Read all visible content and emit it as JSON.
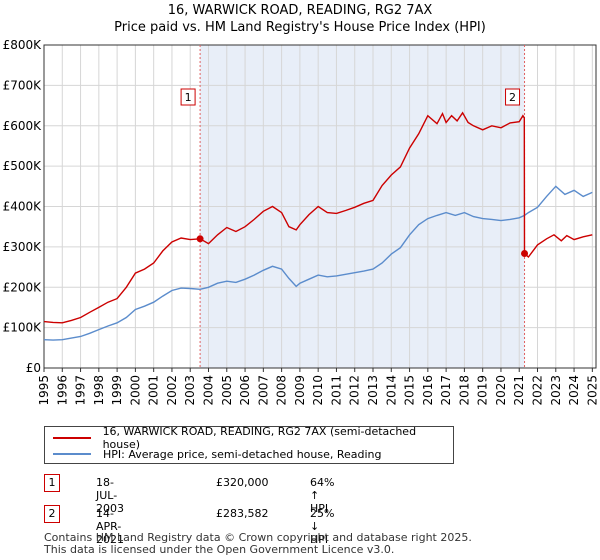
{
  "header": {
    "title": "16, WARWICK ROAD, READING, RG2 7AX",
    "subtitle": "Price paid vs. HM Land Registry's House Price Index (HPI)"
  },
  "legend": {
    "property_label": "16, WARWICK ROAD, READING, RG2 7AX (semi-detached house)",
    "hpi_label": "HPI: Average price, semi-detached house, Reading"
  },
  "transactions": [
    {
      "marker": "1",
      "date": "18-JUL-2003",
      "price": "£320,000",
      "hpi_change": "64% ↑ HPI"
    },
    {
      "marker": "2",
      "date": "14-APR-2021",
      "price": "£283,582",
      "hpi_change": "25% ↓ HPI"
    }
  ],
  "footer": {
    "line1": "Contains HM Land Registry data © Crown copyright and database right 2025.",
    "line2": "This data is licensed under the Open Government Licence v3.0."
  },
  "colors": {
    "property": "#cc0000",
    "hpi": "#5b8ccc",
    "shade": "#e8eef8",
    "grid": "#d6d6d6",
    "marker_line": "#e06060"
  },
  "chart_data": {
    "type": "line",
    "xlim": [
      1995,
      2025.2
    ],
    "ylim": [
      0,
      800000
    ],
    "y_ticks": [
      0,
      100000,
      200000,
      300000,
      400000,
      500000,
      600000,
      700000,
      800000
    ],
    "y_tick_labels": [
      "£0",
      "£100K",
      "£200K",
      "£300K",
      "£400K",
      "£500K",
      "£600K",
      "£700K",
      "£800K"
    ],
    "x_ticks": [
      1995,
      1996,
      1997,
      1998,
      1999,
      2000,
      2001,
      2002,
      2003,
      2004,
      2005,
      2006,
      2007,
      2008,
      2009,
      2010,
      2011,
      2012,
      2013,
      2014,
      2015,
      2016,
      2017,
      2018,
      2019,
      2020,
      2021,
      2022,
      2023,
      2024,
      2025
    ],
    "shaded_range": [
      2003.54,
      2021.29
    ],
    "sale_markers": [
      {
        "label": "1",
        "x": 2003.54,
        "y": 320000
      },
      {
        "label": "2",
        "x": 2021.29,
        "y": 283582
      }
    ],
    "series": [
      {
        "name": "16, WARWICK ROAD, READING, RG2 7AX (semi-detached house)",
        "x": [
          1995,
          1995.5,
          1996,
          1996.5,
          1997,
          1997.5,
          1998,
          1998.5,
          1999,
          1999.5,
          2000,
          2000.5,
          2001,
          2001.5,
          2002,
          2002.5,
          2003,
          2003.54,
          2004,
          2004.5,
          2005,
          2005.5,
          2006,
          2006.5,
          2007,
          2007.5,
          2008,
          2008.4,
          2008.8,
          2009,
          2009.5,
          2010,
          2010.5,
          2011,
          2011.5,
          2012,
          2012.5,
          2013,
          2013.5,
          2014,
          2014.5,
          2015,
          2015.5,
          2016,
          2016.5,
          2016.8,
          2017,
          2017.3,
          2017.6,
          2017.9,
          2018.2,
          2018.5,
          2019,
          2019.5,
          2020,
          2020.5,
          2021,
          2021.2,
          2021.28,
          2021.29,
          2021.5,
          2022,
          2022.5,
          2022.9,
          2023.3,
          2023.6,
          2024,
          2024.5,
          2025
        ],
        "values": [
          115000,
          113000,
          112000,
          118000,
          125000,
          138000,
          150000,
          163000,
          172000,
          200000,
          235000,
          245000,
          260000,
          290000,
          312000,
          322000,
          318000,
          320000,
          308000,
          330000,
          348000,
          338000,
          350000,
          368000,
          388000,
          400000,
          385000,
          350000,
          342000,
          355000,
          380000,
          400000,
          385000,
          383000,
          390000,
          398000,
          408000,
          415000,
          452000,
          478000,
          498000,
          545000,
          580000,
          625000,
          605000,
          630000,
          608000,
          625000,
          612000,
          632000,
          608000,
          600000,
          590000,
          600000,
          595000,
          607000,
          610000,
          625000,
          620000,
          283582,
          275000,
          305000,
          320000,
          330000,
          315000,
          328000,
          318000,
          325000,
          330000
        ]
      },
      {
        "name": "HPI: Average price, semi-detached house, Reading",
        "x": [
          1995,
          1995.5,
          1996,
          1996.5,
          1997,
          1997.5,
          1998,
          1998.5,
          1999,
          1999.5,
          2000,
          2000.5,
          2001,
          2001.5,
          2002,
          2002.5,
          2003,
          2003.54,
          2004,
          2004.5,
          2005,
          2005.5,
          2006,
          2006.5,
          2007,
          2007.5,
          2008,
          2008.4,
          2008.8,
          2009,
          2009.5,
          2010,
          2010.5,
          2011,
          2011.5,
          2012,
          2012.5,
          2013,
          2013.5,
          2014,
          2014.5,
          2015,
          2015.5,
          2016,
          2016.5,
          2017,
          2017.5,
          2018,
          2018.5,
          2019,
          2019.5,
          2020,
          2020.5,
          2021,
          2021.29,
          2021.5,
          2022,
          2022.5,
          2023,
          2023.5,
          2024,
          2024.5,
          2025
        ],
        "values": [
          70000,
          69000,
          70000,
          74000,
          78000,
          86000,
          95000,
          104000,
          112000,
          125000,
          145000,
          153000,
          163000,
          178000,
          192000,
          198000,
          197000,
          195000,
          200000,
          210000,
          215000,
          212000,
          220000,
          230000,
          242000,
          252000,
          245000,
          222000,
          202000,
          210000,
          220000,
          230000,
          226000,
          228000,
          232000,
          236000,
          240000,
          245000,
          260000,
          282000,
          298000,
          330000,
          355000,
          370000,
          378000,
          385000,
          378000,
          385000,
          375000,
          370000,
          368000,
          365000,
          368000,
          372000,
          378000,
          385000,
          398000,
          425000,
          450000,
          430000,
          440000,
          425000,
          435000
        ]
      }
    ]
  }
}
